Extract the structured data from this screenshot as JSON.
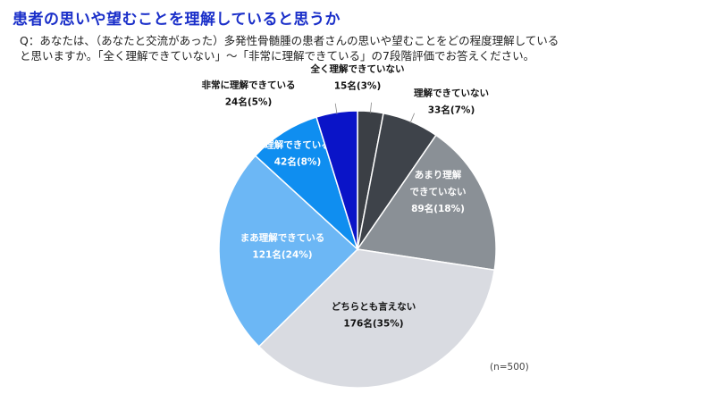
{
  "title": "患者の思いや望むことを理解していると思うか",
  "question": {
    "line1": "Q：あなたは、（あなたと交流があった）多発性骨髄腫の患者さんの思いや望むことをどの程度理解している",
    "line2": "と思いますか。「全く理解できていない」～「非常に理解できている」の7段階評価でお答えください。"
  },
  "chart_data": {
    "type": "pie",
    "total_label": "(n=500)",
    "slices": [
      {
        "label_lines": [
          "全く理解できていない"
        ],
        "count_label": "15名(3%)",
        "value": 15,
        "percent": 3,
        "color": "#3b3f45"
      },
      {
        "label_lines": [
          "理解できていない"
        ],
        "count_label": "33名(7%)",
        "value": 33,
        "percent": 7,
        "color": "#3e434a"
      },
      {
        "label_lines": [
          "あまり理解",
          "できていない"
        ],
        "count_label": "89名(18%)",
        "value": 89,
        "percent": 18,
        "color": "#8a9096"
      },
      {
        "label_lines": [
          "どちらとも言えない"
        ],
        "count_label": "176名(35%)",
        "value": 176,
        "percent": 35,
        "color": "#d9dbe1"
      },
      {
        "label_lines": [
          "まあ理解できている"
        ],
        "count_label": "121名(24%)",
        "value": 121,
        "percent": 24,
        "color": "#6cb7f5"
      },
      {
        "label_lines": [
          "理解できている"
        ],
        "count_label": "42名(8%)",
        "value": 42,
        "percent": 8,
        "color": "#0f8ef0"
      },
      {
        "label_lines": [
          "非常に理解できている"
        ],
        "count_label": "24名(5%)",
        "value": 24,
        "percent": 5,
        "color": "#0a14c8"
      }
    ]
  }
}
